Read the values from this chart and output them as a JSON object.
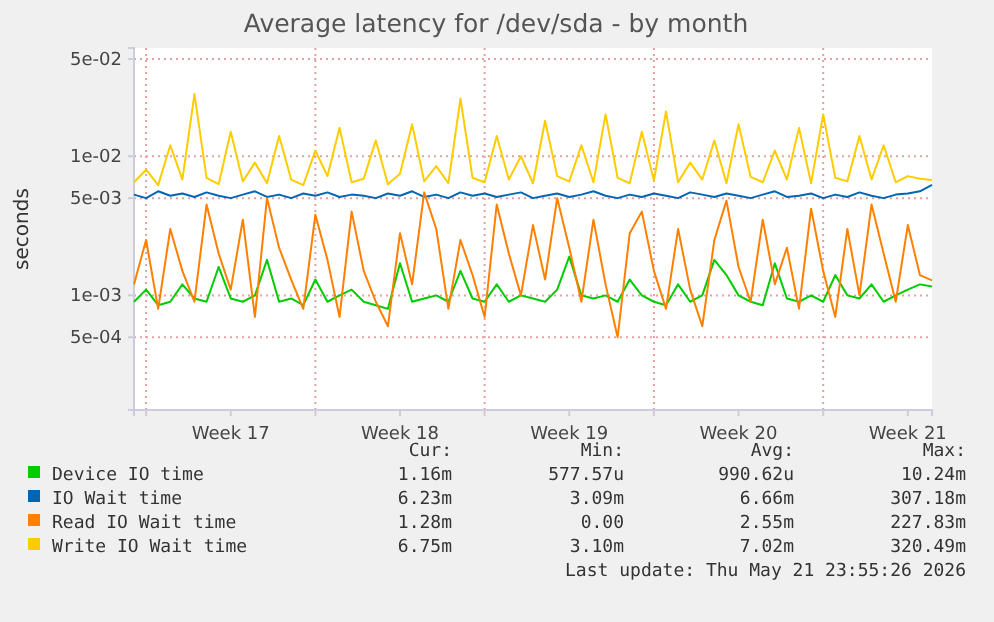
{
  "chart_data": {
    "type": "line",
    "title": "Average latency for /dev/sda - by month",
    "ylabel": "seconds",
    "x": [
      "2026-04-19T12:00",
      "2026-04-20T00:00",
      "2026-04-20T12:00",
      "2026-04-21T00:00",
      "2026-04-21T12:00",
      "2026-04-22T00:00",
      "2026-04-22T12:00",
      "2026-04-23T00:00",
      "2026-04-23T12:00",
      "2026-04-24T00:00",
      "2026-04-24T12:00",
      "2026-04-25T00:00",
      "2026-04-25T12:00",
      "2026-04-26T00:00",
      "2026-04-26T12:00",
      "2026-04-27T00:00",
      "2026-04-27T12:00",
      "2026-04-28T00:00",
      "2026-04-28T12:00",
      "2026-04-29T00:00",
      "2026-04-29T12:00",
      "2026-04-30T00:00",
      "2026-04-30T12:00",
      "2026-05-01T00:00",
      "2026-05-01T12:00",
      "2026-05-02T00:00",
      "2026-05-02T12:00",
      "2026-05-03T00:00",
      "2026-05-03T12:00",
      "2026-05-04T00:00",
      "2026-05-04T12:00",
      "2026-05-05T00:00",
      "2026-05-05T12:00",
      "2026-05-06T00:00",
      "2026-05-06T12:00",
      "2026-05-07T00:00",
      "2026-05-07T12:00",
      "2026-05-08T00:00",
      "2026-05-08T12:00",
      "2026-05-09T00:00",
      "2026-05-09T12:00",
      "2026-05-10T00:00",
      "2026-05-10T12:00",
      "2026-05-11T00:00",
      "2026-05-11T12:00",
      "2026-05-12T00:00",
      "2026-05-12T12:00",
      "2026-05-13T00:00",
      "2026-05-13T12:00",
      "2026-05-14T00:00",
      "2026-05-14T12:00",
      "2026-05-15T00:00",
      "2026-05-15T12:00",
      "2026-05-16T00:00",
      "2026-05-16T12:00",
      "2026-05-17T00:00",
      "2026-05-17T12:00",
      "2026-05-18T00:00",
      "2026-05-18T12:00",
      "2026-05-19T00:00",
      "2026-05-19T12:00",
      "2026-05-20T00:00",
      "2026-05-20T12:00",
      "2026-05-21T00:00",
      "2026-05-21T12:00",
      "2026-05-22T00:00",
      "2026-05-22T12:00"
    ],
    "series": [
      {
        "name": "Device IO time",
        "color": "#00cc00",
        "values": [
          0.0009,
          0.0011,
          0.00085,
          0.0009,
          0.0012,
          0.00095,
          0.0009,
          0.0016,
          0.00095,
          0.0009,
          0.001,
          0.0018,
          0.0009,
          0.00095,
          0.00085,
          0.0013,
          0.0009,
          0.001,
          0.0011,
          0.0009,
          0.00085,
          0.0008,
          0.0017,
          0.0009,
          0.00095,
          0.001,
          0.0009,
          0.0015,
          0.00095,
          0.0009,
          0.0012,
          0.0009,
          0.001,
          0.00095,
          0.0009,
          0.0011,
          0.0019,
          0.001,
          0.00095,
          0.001,
          0.0009,
          0.0013,
          0.001,
          0.0009,
          0.00085,
          0.0012,
          0.0009,
          0.001,
          0.0018,
          0.0014,
          0.001,
          0.0009,
          0.00085,
          0.0017,
          0.00095,
          0.0009,
          0.001,
          0.0009,
          0.0014,
          0.001,
          0.00095,
          0.0012,
          0.0009,
          0.001,
          0.0011,
          0.0012,
          0.00116
        ]
      },
      {
        "name": "IO Wait time",
        "color": "#0066b3",
        "values": [
          0.0053,
          0.005,
          0.0056,
          0.0052,
          0.0054,
          0.0051,
          0.0055,
          0.0052,
          0.005,
          0.0053,
          0.0056,
          0.0051,
          0.0053,
          0.005,
          0.0054,
          0.0052,
          0.0055,
          0.0051,
          0.0053,
          0.0052,
          0.005,
          0.0054,
          0.0052,
          0.0056,
          0.0051,
          0.0053,
          0.005,
          0.0055,
          0.0052,
          0.0054,
          0.0051,
          0.0053,
          0.0055,
          0.005,
          0.0052,
          0.0054,
          0.0051,
          0.0053,
          0.0056,
          0.0052,
          0.005,
          0.0053,
          0.0051,
          0.0054,
          0.0052,
          0.005,
          0.0055,
          0.0053,
          0.0051,
          0.0054,
          0.0052,
          0.005,
          0.0053,
          0.0056,
          0.0051,
          0.0052,
          0.0054,
          0.005,
          0.0053,
          0.0051,
          0.0055,
          0.0052,
          0.005,
          0.0053,
          0.0054,
          0.0056,
          0.00623
        ]
      },
      {
        "name": "Read IO Wait time",
        "color": "#ff8000",
        "values": [
          0.0012,
          0.0025,
          0.0008,
          0.003,
          0.0015,
          0.0009,
          0.0045,
          0.002,
          0.0011,
          0.0035,
          0.0007,
          0.005,
          0.0022,
          0.0013,
          0.0008,
          0.0038,
          0.0018,
          0.0007,
          0.004,
          0.0015,
          0.0009,
          0.0006,
          0.0028,
          0.0012,
          0.0055,
          0.003,
          0.0008,
          0.0025,
          0.0014,
          0.0007,
          0.0045,
          0.002,
          0.001,
          0.0032,
          0.0013,
          0.005,
          0.0022,
          0.0009,
          0.0035,
          0.0012,
          0.0005,
          0.0028,
          0.004,
          0.0015,
          0.0008,
          0.003,
          0.0011,
          0.0006,
          0.0025,
          0.0048,
          0.0016,
          0.0009,
          0.0035,
          0.0012,
          0.0022,
          0.0008,
          0.0042,
          0.0015,
          0.0007,
          0.003,
          0.001,
          0.0045,
          0.002,
          0.0009,
          0.0032,
          0.0014,
          0.00128
        ]
      },
      {
        "name": "Write IO Wait time",
        "color": "#ffcc00",
        "values": [
          0.0065,
          0.008,
          0.0062,
          0.012,
          0.0068,
          0.028,
          0.007,
          0.0063,
          0.015,
          0.0066,
          0.009,
          0.0064,
          0.014,
          0.0068,
          0.0062,
          0.011,
          0.0072,
          0.016,
          0.0065,
          0.0069,
          0.013,
          0.0063,
          0.0075,
          0.017,
          0.0066,
          0.0085,
          0.0064,
          0.026,
          0.007,
          0.0065,
          0.014,
          0.0068,
          0.01,
          0.0064,
          0.018,
          0.0072,
          0.0066,
          0.012,
          0.0065,
          0.02,
          0.007,
          0.0064,
          0.015,
          0.0067,
          0.021,
          0.0065,
          0.009,
          0.0068,
          0.013,
          0.0064,
          0.017,
          0.0071,
          0.0065,
          0.011,
          0.0068,
          0.016,
          0.0064,
          0.02,
          0.007,
          0.0066,
          0.014,
          0.0068,
          0.012,
          0.0065,
          0.0072,
          0.0069,
          0.00675
        ]
      }
    ],
    "log": true,
    "ylim": [
      0.00015,
      0.06
    ],
    "yticks": [
      {
        "value": 0.0005,
        "label": "5e-04"
      },
      {
        "value": 0.001,
        "label": "1e-03"
      },
      {
        "value": 0.005,
        "label": "5e-03"
      },
      {
        "value": 0.01,
        "label": "1e-02"
      },
      {
        "value": 0.05,
        "label": "5e-02"
      }
    ],
    "xlim": [
      "2026-04-19T12:00",
      "2026-05-22T12:00"
    ],
    "xticks": [
      {
        "value": "2026-04-20",
        "label": null
      },
      {
        "value": "2026-04-23T12:00",
        "label": "Week 17"
      },
      {
        "value": "2026-04-27",
        "label": null
      },
      {
        "value": "2026-04-30T12:00",
        "label": "Week 18"
      },
      {
        "value": "2026-05-04",
        "label": null
      },
      {
        "value": "2026-05-07T12:00",
        "label": "Week 19"
      },
      {
        "value": "2026-05-11",
        "label": null
      },
      {
        "value": "2026-05-14T12:00",
        "label": "Week 20"
      },
      {
        "value": "2026-05-18",
        "label": null
      },
      {
        "value": "2026-05-21T12:00",
        "label": "Week 21"
      }
    ],
    "grid": true,
    "legend": "bottom",
    "annotations": [
      "Cur:",
      "Min:",
      "Avg:",
      "Max:",
      "1.16m",
      "577.57u",
      "990.62u",
      "10.24m",
      "6.23m",
      "3.09m",
      "6.66m",
      "307.18m",
      "1.28m",
      "0.00",
      "2.55m",
      "227.83m",
      "6.75m",
      "3.10m",
      "7.02m",
      "320.49m",
      "Last update: Thu May 21 23:55:26 2026"
    ]
  }
}
